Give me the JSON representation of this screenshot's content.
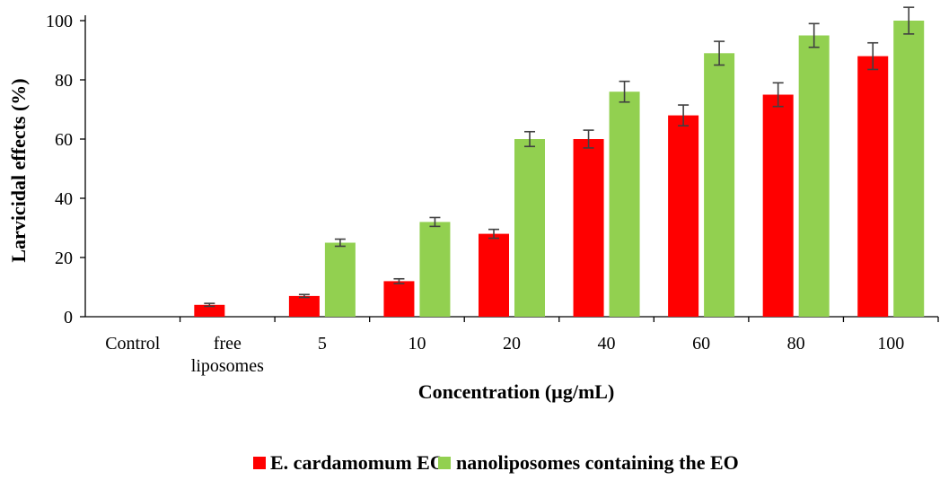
{
  "chart_data": {
    "type": "bar",
    "categories": [
      [
        "Control"
      ],
      [
        "free",
        "liposomes"
      ],
      [
        "5"
      ],
      [
        "10"
      ],
      [
        "20"
      ],
      [
        "40"
      ],
      [
        "60"
      ],
      [
        "80"
      ],
      [
        "100"
      ]
    ],
    "series": [
      {
        "name": "E. cardamomum EO",
        "color": "#ff0000",
        "values": [
          null,
          4,
          7,
          12,
          28,
          60,
          68,
          75,
          88
        ],
        "errors": [
          null,
          0.5,
          0.5,
          0.8,
          1.5,
          3,
          3.5,
          4,
          4.5
        ]
      },
      {
        "name": "nanoliposomes containing the EO",
        "color": "#92d050",
        "values": [
          null,
          null,
          25,
          32,
          60,
          76,
          89,
          95,
          100
        ],
        "errors": [
          null,
          null,
          1.2,
          1.5,
          2.5,
          3.5,
          4,
          4,
          4.5
        ]
      }
    ],
    "xlabel": "Concentration (µg/mL)",
    "ylabel": "Larvicidal effects (%)",
    "ylim": [
      0,
      100
    ],
    "yticks": [
      0,
      20,
      40,
      60,
      80,
      100
    ],
    "grid": false,
    "legend": "bottom",
    "axis_color": "#000000",
    "errorbar_color": "#404040"
  }
}
